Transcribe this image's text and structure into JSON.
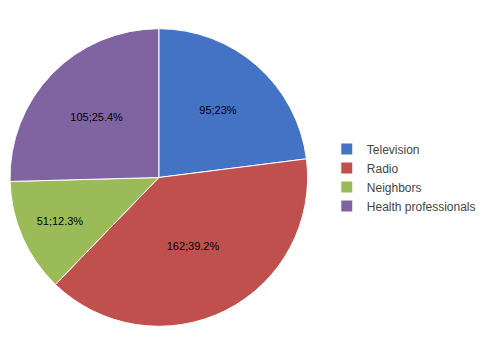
{
  "chart_data": {
    "type": "pie",
    "categories": [
      "Television",
      "Radio",
      "Neighbors",
      "Health professionals"
    ],
    "values": [
      95,
      162,
      51,
      105
    ],
    "value_labels": [
      "95;23%",
      "162;39.2%",
      "51;12.3%",
      "105;25.4%"
    ],
    "colors": [
      "#4472C4",
      "#C0504D",
      "#9BBB59",
      "#8064A2"
    ],
    "data_labels": true,
    "legend": "right"
  }
}
